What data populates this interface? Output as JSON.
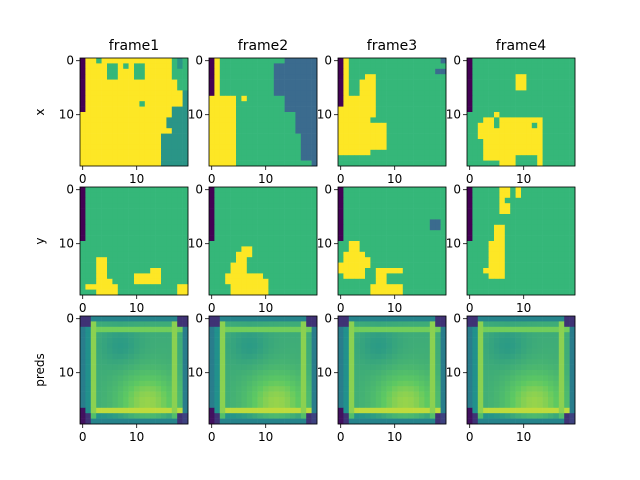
{
  "figure": {
    "column_titles": [
      "frame1",
      "frame2",
      "frame3",
      "frame4"
    ],
    "row_labels": [
      "x",
      "y",
      "preds"
    ]
  },
  "colors": {
    "purple": "#440154",
    "blue": "#3b6b8e",
    "teal": "#2a9587",
    "green": "#35b779",
    "yellow": "#fde725",
    "mid_blue": "#33638d",
    "bright_green": "#90d743"
  },
  "chart_data": {
    "type": "heatmap",
    "grid_size": [
      20,
      20
    ],
    "x_ticks": [
      0,
      10
    ],
    "y_ticks": [
      0,
      10
    ],
    "colormap": "viridis",
    "panels": [
      {
        "row": "x",
        "column": "frame1",
        "description_key": "x1"
      },
      {
        "row": "x",
        "column": "frame2",
        "description_key": "x2"
      },
      {
        "row": "x",
        "column": "frame3",
        "description_key": "x3"
      },
      {
        "row": "x",
        "column": "frame4",
        "description_key": "x4"
      },
      {
        "row": "y",
        "column": "frame1",
        "description_key": "y1"
      },
      {
        "row": "y",
        "column": "frame2",
        "description_key": "y2"
      },
      {
        "row": "y",
        "column": "frame3",
        "description_key": "y3"
      },
      {
        "row": "y",
        "column": "frame4",
        "description_key": "y4"
      },
      {
        "row": "preds",
        "column": "frame1",
        "description_key": "p"
      },
      {
        "row": "preds",
        "column": "frame2",
        "description_key": "p"
      },
      {
        "row": "preds",
        "column": "frame3",
        "description_key": "p"
      },
      {
        "row": "preds",
        "column": "frame4",
        "description_key": "p"
      }
    ]
  }
}
